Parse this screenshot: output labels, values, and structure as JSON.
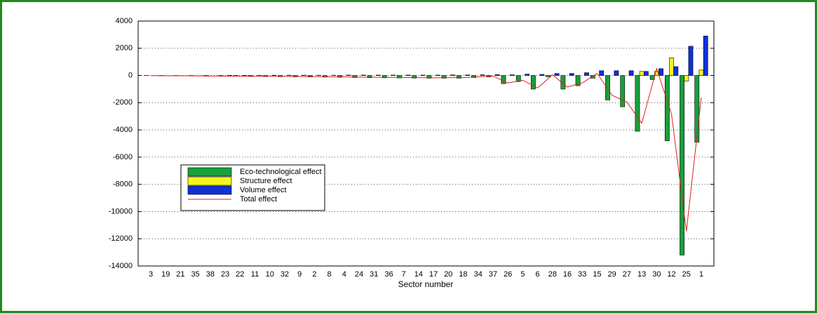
{
  "chart_data": {
    "type": "bar",
    "x_label": "Sector number",
    "categories": [
      "3",
      "19",
      "21",
      "35",
      "38",
      "23",
      "22",
      "11",
      "10",
      "32",
      "9",
      "2",
      "8",
      "4",
      "24",
      "31",
      "36",
      "7",
      "14",
      "17",
      "20",
      "18",
      "34",
      "37",
      "26",
      "5",
      "6",
      "28",
      "16",
      "33",
      "15",
      "29",
      "27",
      "13",
      "30",
      "12",
      "25",
      "1"
    ],
    "series": [
      {
        "name": "Eco-technological effect",
        "color": "#18a03a",
        "type": "bar",
        "values": [
          -10,
          -20,
          -20,
          -30,
          -40,
          -50,
          -60,
          -70,
          -80,
          -90,
          -100,
          -110,
          -120,
          -130,
          -150,
          -160,
          -170,
          -180,
          -190,
          -200,
          -200,
          -200,
          -150,
          -100,
          -600,
          -450,
          -1000,
          -100,
          -1000,
          -750,
          -200,
          -1800,
          -2300,
          -4100,
          -300,
          -4800,
          -13200,
          -4900
        ]
      },
      {
        "name": "Structure effect",
        "color": "#f5f51e",
        "type": "bar",
        "values": [
          0,
          0,
          0,
          0,
          0,
          0,
          0,
          0,
          0,
          0,
          0,
          0,
          0,
          0,
          0,
          0,
          0,
          0,
          0,
          0,
          0,
          0,
          0,
          0,
          0,
          0,
          0,
          0,
          0,
          0,
          0,
          0,
          0,
          300,
          300,
          1300,
          -400,
          400
        ]
      },
      {
        "name": "Volume effect",
        "color": "#1030d8",
        "type": "bar",
        "values": [
          0,
          0,
          0,
          0,
          0,
          10,
          10,
          10,
          20,
          20,
          20,
          20,
          20,
          30,
          30,
          30,
          30,
          30,
          30,
          30,
          40,
          40,
          50,
          60,
          50,
          100,
          80,
          150,
          150,
          200,
          350,
          350,
          350,
          300,
          500,
          650,
          2150,
          2900
        ]
      },
      {
        "name": "Total effect",
        "color": "#e02020",
        "type": "line",
        "values": [
          -10,
          -20,
          -20,
          -30,
          -40,
          -40,
          -50,
          -60,
          -60,
          -70,
          -80,
          -90,
          -100,
          -100,
          -120,
          -130,
          -140,
          -150,
          -160,
          -170,
          -160,
          -160,
          -100,
          -40,
          -550,
          -350,
          -920,
          50,
          -850,
          -550,
          150,
          -1450,
          -1950,
          -3500,
          500,
          -2850,
          -11450,
          -1600
        ]
      }
    ],
    "ylim": [
      -14000,
      4000
    ],
    "yticks": [
      -14000,
      -12000,
      -10000,
      -8000,
      -6000,
      -4000,
      -2000,
      0,
      2000,
      4000
    ],
    "grid": true,
    "legend": "lower-left"
  }
}
